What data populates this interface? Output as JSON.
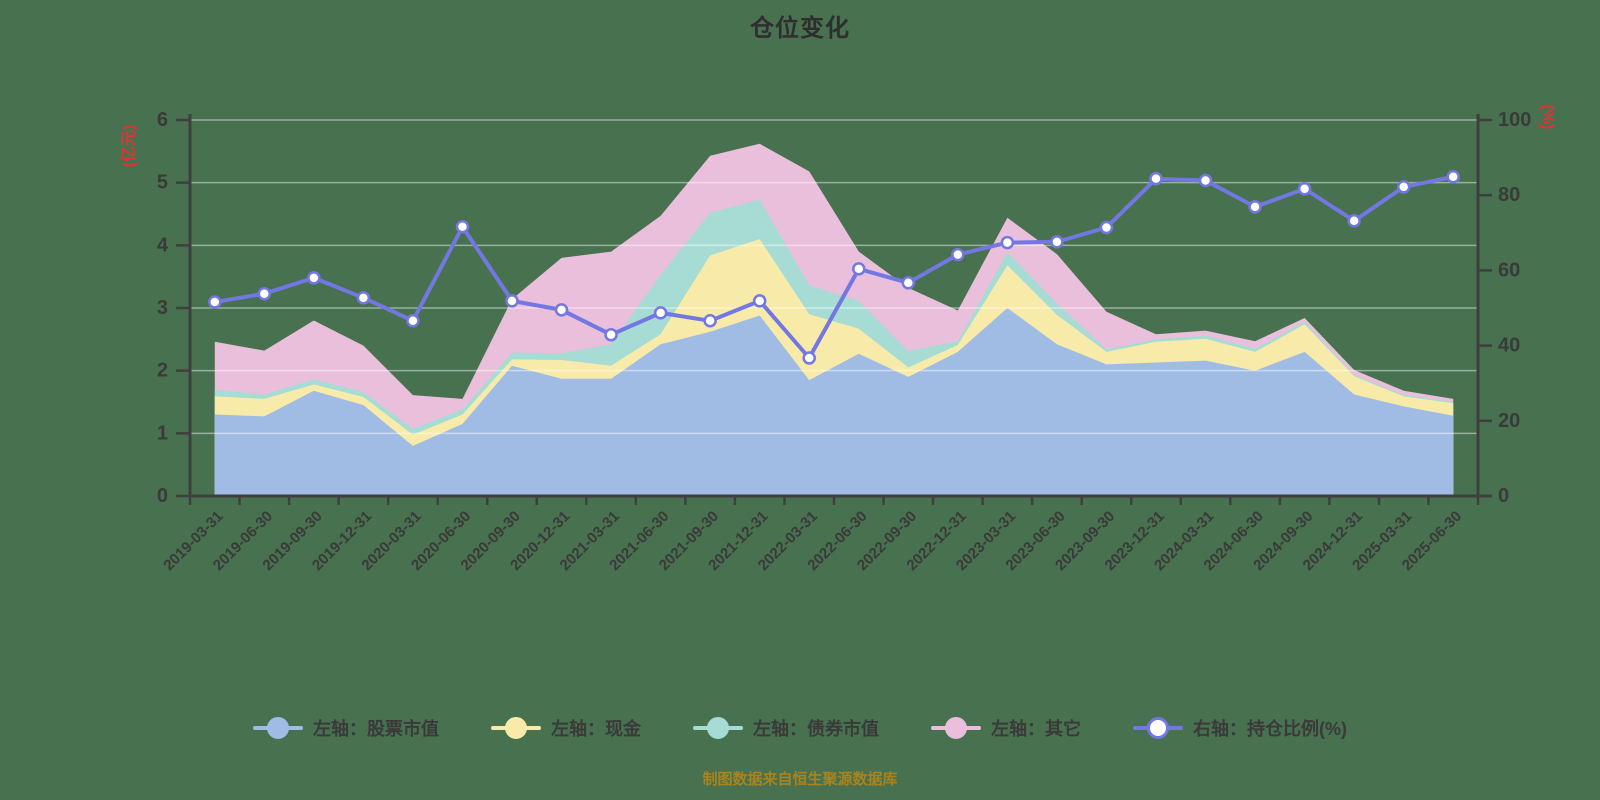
{
  "title": "仓位变化",
  "source_note": "制图数据来自恒生聚源数据库",
  "colors": {
    "background": "#48714f",
    "stock_area": "#a0bce4",
    "cash_area": "#f8eba9",
    "bond_area": "#a6dcd4",
    "other_area": "#eabfdc",
    "ratio_line": "#7277e2",
    "ratio_dot_fill": "#ffffff",
    "axis_line": "#3f3f3f",
    "tick_label": "#3a3a3a",
    "gridline": "rgba(255,255,255,0.45)",
    "axis_name_red": "#e03434",
    "title_text": "#2e2e2e",
    "source_text": "#a9831d"
  },
  "axes": {
    "left": {
      "name": "(亿元)",
      "ticks": [
        0,
        1,
        2,
        3,
        4,
        5,
        6
      ],
      "max": 6
    },
    "right": {
      "name": "(%)",
      "ticks": [
        0,
        20,
        40,
        60,
        80,
        100
      ],
      "max": 100
    }
  },
  "chart_data": {
    "type": "area",
    "subtype": "stacked-area-with-line",
    "title": "仓位变化",
    "grid": true,
    "legend_position": "bottom",
    "ylim_left": [
      0,
      6
    ],
    "ylim_right": [
      0,
      100
    ],
    "categories": [
      "2019-03-31",
      "2019-06-30",
      "2019-09-30",
      "2019-12-31",
      "2020-03-31",
      "2020-06-30",
      "2020-09-30",
      "2020-12-31",
      "2021-03-31",
      "2021-06-30",
      "2021-09-30",
      "2021-12-31",
      "2022-03-31",
      "2022-06-30",
      "2022-09-30",
      "2022-12-31",
      "2023-03-31",
      "2023-06-30",
      "2023-09-30",
      "2023-12-31",
      "2024-03-31",
      "2024-06-30",
      "2024-09-30",
      "2024-12-31",
      "2025-03-31",
      "2025-06-30"
    ],
    "series": [
      {
        "name": "左轴：股票市值",
        "axis": "left",
        "kind": "area",
        "stack": true,
        "color": "#a0bce4",
        "values": [
          1.3,
          1.27,
          1.68,
          1.45,
          0.8,
          1.15,
          2.08,
          1.87,
          1.87,
          2.42,
          2.62,
          2.88,
          1.85,
          2.27,
          1.9,
          2.3,
          3.0,
          2.42,
          2.1,
          2.13,
          2.16,
          2.0,
          2.3,
          1.62,
          1.43,
          1.28
        ]
      },
      {
        "name": "左轴：现金",
        "axis": "left",
        "kind": "area",
        "stack": true,
        "color": "#f8eba9",
        "values": [
          0.29,
          0.28,
          0.1,
          0.13,
          0.18,
          0.15,
          0.1,
          0.3,
          0.21,
          0.16,
          1.22,
          1.22,
          1.05,
          0.4,
          0.15,
          0.11,
          0.68,
          0.47,
          0.2,
          0.33,
          0.35,
          0.3,
          0.44,
          0.29,
          0.16,
          0.2
        ]
      },
      {
        "name": "左轴：债券市值",
        "axis": "left",
        "kind": "area",
        "stack": true,
        "color": "#a6dcd4",
        "values": [
          0.11,
          0.07,
          0.08,
          0.08,
          0.09,
          0.08,
          0.11,
          0.11,
          0.34,
          0.95,
          0.68,
          0.63,
          0.46,
          0.44,
          0.26,
          0.06,
          0.21,
          0.18,
          0.04,
          0.04,
          0.05,
          0.05,
          0.04,
          0.02,
          0.02,
          0.02
        ]
      },
      {
        "name": "左轴：其它",
        "axis": "left",
        "kind": "area",
        "stack": true,
        "color": "#eabfdc",
        "values": [
          0.76,
          0.7,
          0.94,
          0.74,
          0.54,
          0.17,
          0.85,
          1.52,
          1.48,
          0.94,
          0.91,
          0.89,
          1.82,
          0.79,
          1.01,
          0.49,
          0.55,
          0.79,
          0.6,
          0.08,
          0.08,
          0.12,
          0.06,
          0.08,
          0.07,
          0.05
        ]
      },
      {
        "name": "右轴：持仓比例(%)",
        "axis": "right",
        "kind": "line",
        "stack": false,
        "color": "#7277e2",
        "values": [
          51.6,
          53.8,
          58.0,
          52.7,
          46.6,
          71.6,
          51.9,
          49.5,
          42.9,
          48.7,
          46.6,
          51.9,
          36.7,
          60.4,
          56.7,
          64.2,
          67.4,
          67.6,
          71.4,
          84.4,
          83.9,
          76.9,
          81.7,
          73.2,
          82.2,
          84.9
        ]
      }
    ]
  },
  "legend": {
    "items": [
      {
        "label": "左轴：股票市值",
        "color": "#a0bce4",
        "hollow": false
      },
      {
        "label": "左轴：现金",
        "color": "#f8eba9",
        "hollow": false
      },
      {
        "label": "左轴：债券市值",
        "color": "#a6dcd4",
        "hollow": false
      },
      {
        "label": "左轴：其它",
        "color": "#eabfdc",
        "hollow": false
      },
      {
        "label": "右轴：持仓比例(%)",
        "color": "#7277e2",
        "hollow": true
      }
    ]
  }
}
